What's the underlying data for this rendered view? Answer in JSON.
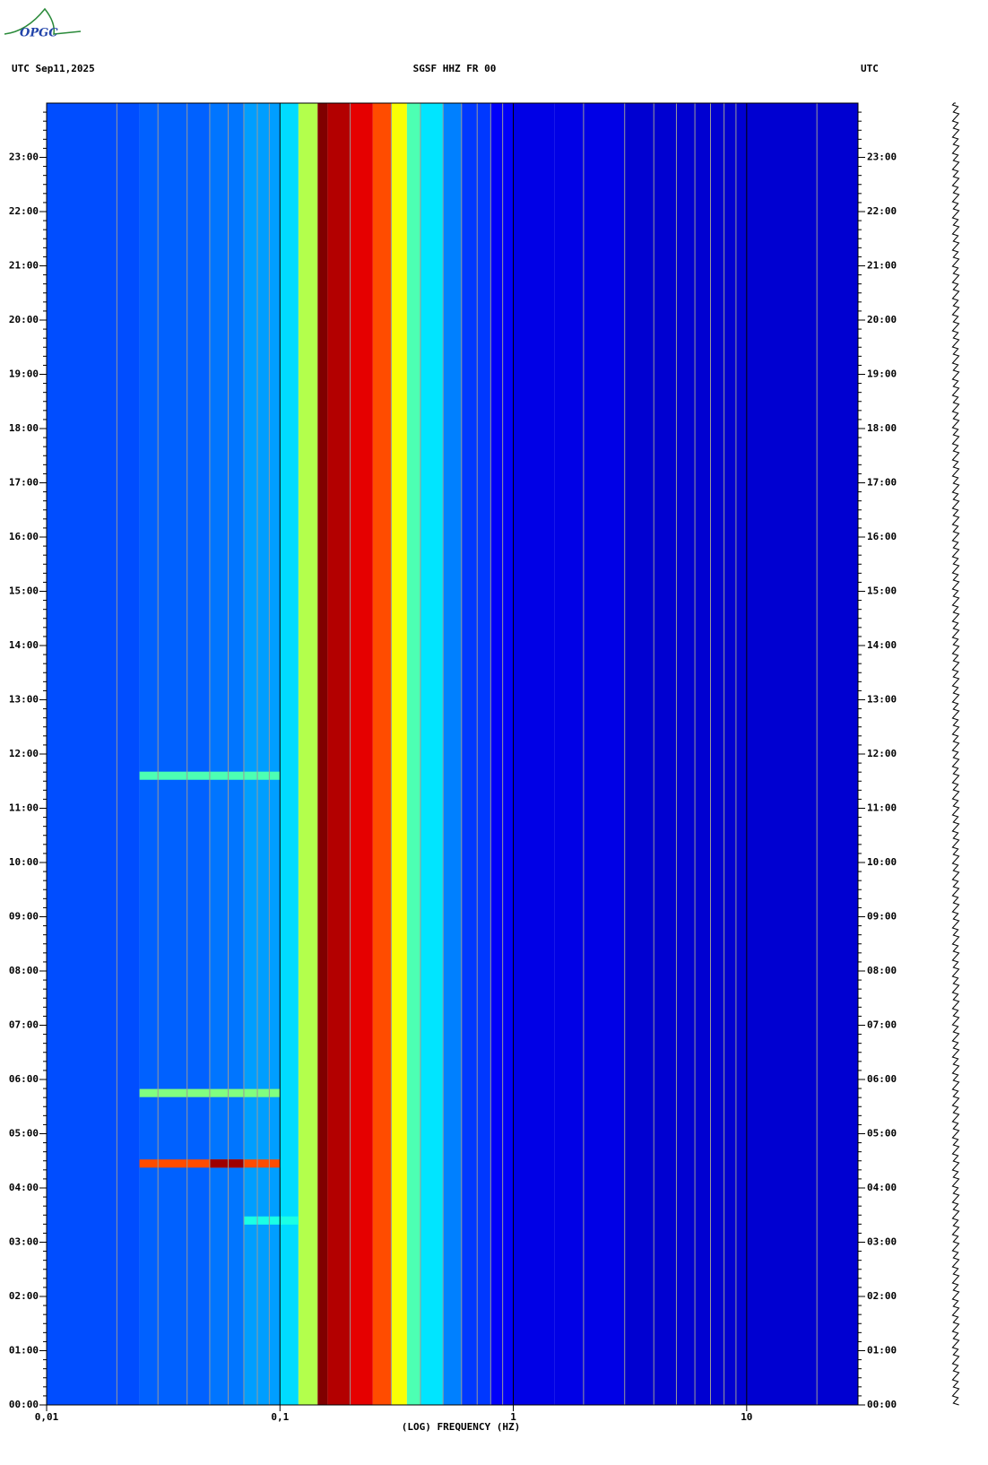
{
  "chart_data": {
    "type": "spectrogram",
    "logo": "OPGC",
    "header_left": "UTC  Sep11,2025",
    "title": "SGSF HHZ FR 00",
    "header_right": "UTC",
    "xlabel": "(LOG) FREQUENCY (HZ)",
    "xscale": "log",
    "xlim": [
      0.01,
      30
    ],
    "xticks": [
      {
        "value": 0.01,
        "label": "0,01"
      },
      {
        "value": 0.1,
        "label": "0,1"
      },
      1,
      10
    ],
    "minor_xticks": [
      0.02,
      0.03,
      0.04,
      0.05,
      0.06,
      0.07,
      0.08,
      0.09,
      0.2,
      0.3,
      0.4,
      0.5,
      0.6,
      0.7,
      0.8,
      0.9,
      2,
      3,
      4,
      5,
      6,
      7,
      8,
      9,
      20
    ],
    "ylim": [
      0,
      24
    ],
    "yticks": [
      {
        "value": 0,
        "label": "00:00"
      },
      {
        "value": 1,
        "label": "01:00"
      },
      {
        "value": 2,
        "label": "02:00"
      },
      {
        "value": 3,
        "label": "03:00"
      },
      {
        "value": 4,
        "label": "04:00"
      },
      {
        "value": 5,
        "label": "05:00"
      },
      {
        "value": 6,
        "label": "06:00"
      },
      {
        "value": 7,
        "label": "07:00"
      },
      {
        "value": 8,
        "label": "08:00"
      },
      {
        "value": 9,
        "label": "09:00"
      },
      {
        "value": 10,
        "label": "10:00"
      },
      {
        "value": 11,
        "label": "11:00"
      },
      {
        "value": 12,
        "label": "12:00"
      },
      {
        "value": 13,
        "label": "13:00"
      },
      {
        "value": 14,
        "label": "14:00"
      },
      {
        "value": 15,
        "label": "15:00"
      },
      {
        "value": 16,
        "label": "16:00"
      },
      {
        "value": 17,
        "label": "17:00"
      },
      {
        "value": 18,
        "label": "18:00"
      },
      {
        "value": 19,
        "label": "19:00"
      },
      {
        "value": 20,
        "label": "20:00"
      },
      {
        "value": 21,
        "label": "21:00"
      },
      {
        "value": 22,
        "label": "22:00"
      },
      {
        "value": 23,
        "label": "23:00"
      }
    ],
    "bins": [
      0.01,
      0.025,
      0.05,
      0.07,
      0.1,
      0.12,
      0.145,
      0.16,
      0.2,
      0.25,
      0.3,
      0.35,
      0.4,
      0.5,
      0.6,
      0.8,
      1,
      1.5,
      3,
      30
    ],
    "levels": [
      0.2,
      0.22,
      0.24,
      0.28,
      0.34,
      0.55,
      1.0,
      0.95,
      0.9,
      0.8,
      0.62,
      0.45,
      0.35,
      0.25,
      0.18,
      0.12,
      0.1,
      0.1,
      0.08
    ],
    "events": [
      {
        "time": 4.45,
        "fmin": 0.025,
        "fmax": 0.1,
        "level": 0.8
      },
      {
        "time": 4.45,
        "fmin": 0.05,
        "fmax": 0.07,
        "level": 0.97
      },
      {
        "time": 5.75,
        "fmin": 0.025,
        "fmax": 0.1,
        "level": 0.5
      },
      {
        "time": 11.6,
        "fmin": 0.025,
        "fmax": 0.1,
        "level": 0.45
      },
      {
        "time": 3.4,
        "fmin": 0.07,
        "fmax": 0.12,
        "level": 0.4
      }
    ]
  }
}
